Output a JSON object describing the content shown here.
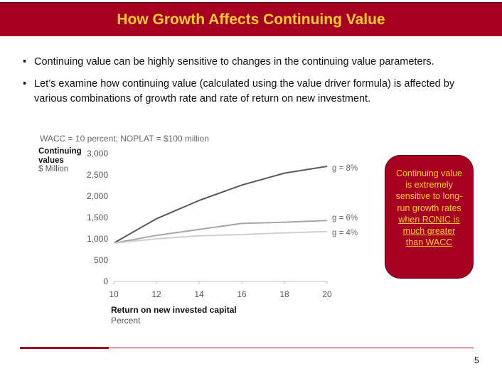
{
  "header": {
    "title": "How Growth Affects Continuing Value"
  },
  "bullets": [
    {
      "mark": "•",
      "text": "Continuing value can be highly sensitive to changes in the continuing value parameters."
    },
    {
      "mark": "•",
      "text": "Let’s examine how continuing value (calculated using the value driver formula) is affected by various combinations of growth rate and rate of return on new investment."
    }
  ],
  "chart_data": {
    "type": "line",
    "subtitle": "WACC = 10 percent; NOPLAT = $100 million",
    "ylabel": "Continuing values",
    "ylabel_unit": "$ Million",
    "xlabel": "Return on new invested capital",
    "xlabel_unit": "Percent",
    "x": [
      10,
      12,
      14,
      16,
      18,
      20
    ],
    "x_tick_labels": [
      "10",
      "12",
      "14",
      "16",
      "18",
      "20"
    ],
    "y_tick_labels": [
      "0",
      "500",
      "1,000",
      "1,500",
      "2,000",
      "2,500",
      "3,000"
    ],
    "y_ticks": [
      0,
      500,
      1000,
      1500,
      2000,
      2500,
      3000
    ],
    "ylim": [
      0,
      3000
    ],
    "xlim": [
      10,
      20
    ],
    "grid": false,
    "series": [
      {
        "name": "g = 8%",
        "color": "#595959",
        "values": [
          900,
          1470,
          1900,
          2260,
          2540,
          2700
        ]
      },
      {
        "name": "g = 6%",
        "color": "#a6a6a6",
        "values": [
          900,
          1080,
          1220,
          1360,
          1390,
          1430
        ]
      },
      {
        "name": "g = 4%",
        "color": "#cfcfcf",
        "values": [
          900,
          1000,
          1070,
          1100,
          1140,
          1170
        ]
      }
    ]
  },
  "callout": {
    "lines_plain": [
      "Continuing value",
      "is extremely",
      "sensitive to long-",
      "run growth rates"
    ],
    "lines_underlined": [
      "when RONIC is",
      "much greater",
      "than WACC"
    ]
  },
  "footer": {
    "page_number": "5"
  },
  "colors": {
    "brand": "#a50021",
    "title_text": "#ffcc33"
  }
}
